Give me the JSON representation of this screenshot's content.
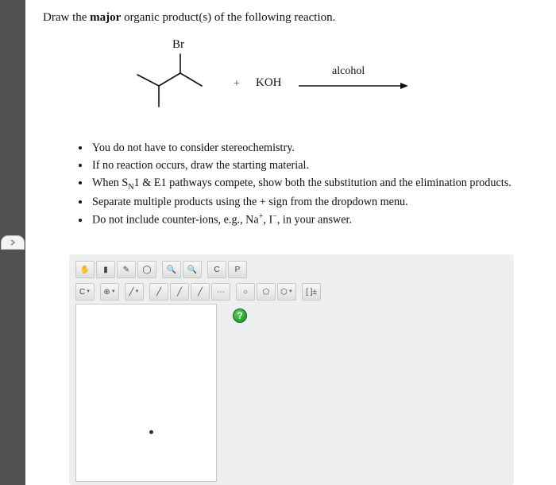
{
  "prompt": {
    "pre": "Draw the ",
    "bold": "major",
    "post": " organic product(s) of the following reaction."
  },
  "reaction": {
    "br": "Br",
    "plus": "+",
    "reagent": "KOH",
    "condition": "alcohol"
  },
  "instructions": [
    "You do not have to consider stereochemistry.",
    "If no reaction occurs, draw the starting material.",
    "When S<sub>N</sub>1 & E1 pathways compete, show both the substitution and the elimination products.",
    "Separate multiple products using the + sign from the dropdown menu.",
    "Do not include counter-ions, e.g., Na<sup>+</sup>, I<sup>−</sup>, in your answer."
  ],
  "toolbar": {
    "row1": [
      "hand",
      "highlight",
      "pencil",
      "lasso",
      "",
      "zoomin",
      "zoomout",
      "",
      "copy",
      "paste"
    ],
    "row2": [
      "C",
      "",
      "plus",
      "",
      "line",
      "",
      "bond1",
      "bond2",
      "bond3",
      "bond4",
      "",
      "ring1",
      "ring2",
      "ring3",
      "",
      "charges"
    ]
  },
  "icons": {
    "hand": "✋",
    "highlight": "▮",
    "pencil": "✎",
    "lasso": "◯",
    "zoomin": "🔍",
    "zoomout": "🔍",
    "copy": "C",
    "paste": "P",
    "C": "C",
    "plus": "⊕",
    "line": "╱",
    "bond1": "╱",
    "bond2": "╱",
    "bond3": "╱",
    "bond4": "⋯",
    "ring1": "○",
    "ring2": "⬠",
    "ring3": "⬡",
    "charges": "[ ]±"
  },
  "help": "?",
  "colors": {
    "page_bg": "#ffffff",
    "outer_bg": "#4f5050",
    "interface_bg": "#eeefef",
    "text": "#111111",
    "btn_border": "#c7c8c8"
  }
}
